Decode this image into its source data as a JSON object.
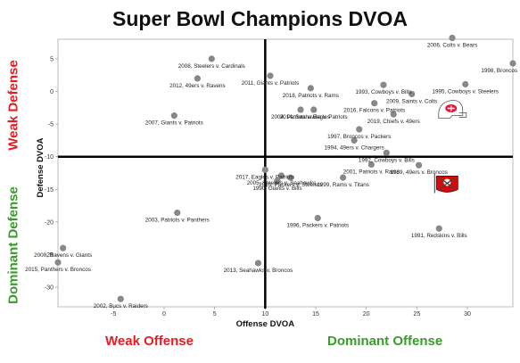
{
  "chart_data": {
    "type": "scatter",
    "title": "Super Bowl Champions DVOA",
    "xlabel": "Offense DVOA",
    "ylabel": "Defense DVOA",
    "xlim": [
      -10.5,
      34.5
    ],
    "ylim": [
      -33,
      8
    ],
    "x_ticks": [
      -5,
      0,
      5,
      10,
      15,
      20,
      25,
      30
    ],
    "y_ticks": [
      5,
      0,
      -5,
      -10,
      -15,
      -20,
      -25,
      -30
    ],
    "x_reference": 10,
    "y_reference": -10,
    "grid": false,
    "points": [
      {
        "x": 28.5,
        "y": 8.2,
        "label": "2006, Colts v. Bears"
      },
      {
        "x": 34.5,
        "y": 4.3,
        "label": "1998, Broncos"
      },
      {
        "x": 4.7,
        "y": 5.0,
        "label": "2008, Steelers v. Cardinals"
      },
      {
        "x": 3.3,
        "y": 2.0,
        "label": "2012, 49ers v. Ravens"
      },
      {
        "x": 10.5,
        "y": 2.4,
        "label": "2011, Giants v. Patriots"
      },
      {
        "x": 14.5,
        "y": 0.5,
        "label": "2018, Patriots v. Rams"
      },
      {
        "x": 21.7,
        "y": 1.0,
        "label": "1993, Cowboys v. Bills"
      },
      {
        "x": 24.5,
        "y": -0.4,
        "label": "2009, Saints v. Colts"
      },
      {
        "x": 29.8,
        "y": 1.1,
        "label": "1995, Cowboys v. Steelers"
      },
      {
        "x": 20.8,
        "y": -1.8,
        "label": "2016, Falcons v. Patriots"
      },
      {
        "x": 13.5,
        "y": -2.8,
        "label": "2004, Patriots v. Eagles"
      },
      {
        "x": 14.8,
        "y": -2.8,
        "label": "2014, Seahawks v. Patriots"
      },
      {
        "x": 22.7,
        "y": -3.5,
        "label": "2019, Chiefs v. 49ers"
      },
      {
        "x": 1.0,
        "y": -3.7,
        "label": "2007, Giants v. Patriots"
      },
      {
        "x": 19.3,
        "y": -5.8,
        "label": "1997, Broncos v. Packers"
      },
      {
        "x": 18.8,
        "y": -7.5,
        "label": "1994, 49ers v. Chargers"
      },
      {
        "x": 22.0,
        "y": -9.4,
        "label": "1992, Cowboys v. Bills"
      },
      {
        "x": 20.5,
        "y": -11.2,
        "label": "2001, Patriots v. Rams"
      },
      {
        "x": 25.2,
        "y": -11.3,
        "label": "1989, 49ers v. Broncos"
      },
      {
        "x": 10.0,
        "y": -12.0,
        "label": "2017, Eagles v. Patriots"
      },
      {
        "x": 11.6,
        "y": -12.9,
        "label": "2005, Steelers v. Seahawks"
      },
      {
        "x": 12.5,
        "y": -13.2,
        "label": "2010, Packers v. Steelers"
      },
      {
        "x": 11.2,
        "y": -13.7,
        "label": "1990, Giants v. Bills"
      },
      {
        "x": 17.7,
        "y": -13.2,
        "label": "1999, Rams v. Titans"
      },
      {
        "x": 1.3,
        "y": -18.6,
        "label": "2003, Patriots v. Panthers"
      },
      {
        "x": 15.2,
        "y": -19.4,
        "label": "1996, Packers v. Patriots"
      },
      {
        "x": 27.2,
        "y": -21.0,
        "label": "1991, Redskins v. Bills"
      },
      {
        "x": -10.0,
        "y": -24.0,
        "label": "2000, Ravens v. Giants"
      },
      {
        "x": -10.5,
        "y": -26.2,
        "label": "2015, Panthers v. Broncos"
      },
      {
        "x": 9.3,
        "y": -26.3,
        "label": "2013, Seahawks v. Broncos"
      },
      {
        "x": -4.3,
        "y": -31.8,
        "label": "2002, Bucs v. Raiders"
      }
    ],
    "logos": [
      {
        "team": "Kansas City Chiefs",
        "x": 28.3,
        "y": -3.0,
        "color": "#e31837"
      },
      {
        "team": "Tampa Bay Buccaneers",
        "x": 28.0,
        "y": -14.2,
        "color": "#d50a0a"
      }
    ]
  },
  "quadrant_labels": {
    "weak_defense": "Weak Defense",
    "dominant_defense": "Dominant Defense",
    "weak_offense": "Weak Offense",
    "dominant_offense": "Dominant Offense"
  },
  "colors": {
    "weak": "#e51c23",
    "dominant": "#3a9a2d",
    "point": "#888888"
  }
}
